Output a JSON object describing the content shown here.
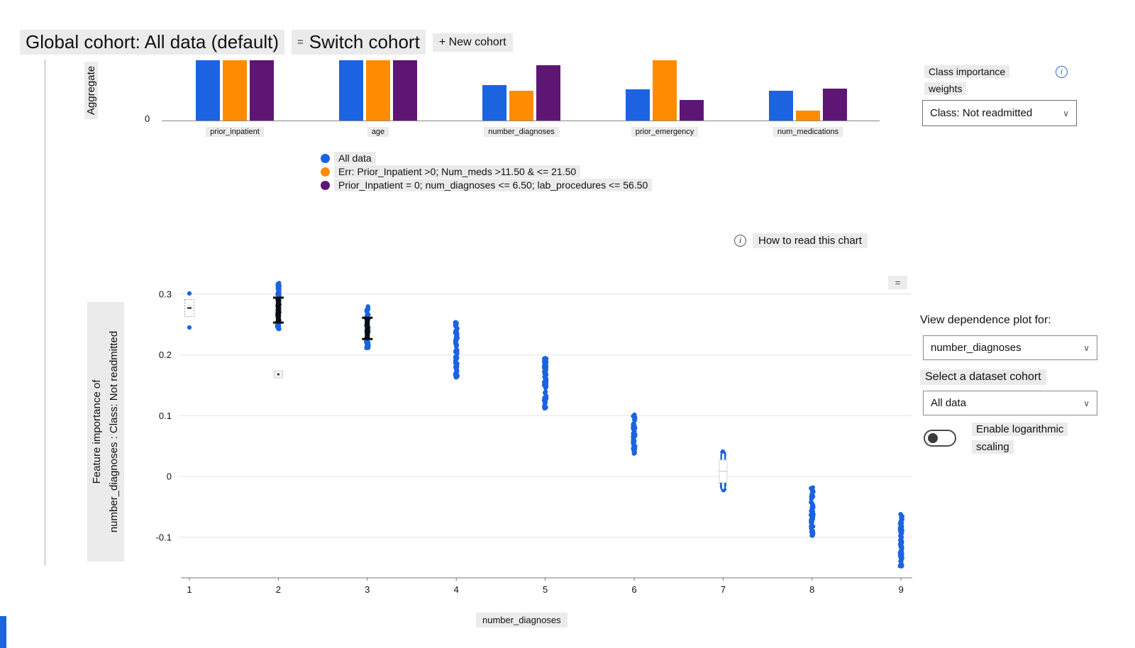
{
  "colors": {
    "blue": "#1b63e0",
    "orange": "#ff8c00",
    "purple": "#5e1675",
    "pill_bg": "#ebebeb"
  },
  "icons": {
    "chevron": "∨",
    "info": "i",
    "switch": "=",
    "modebar": "="
  },
  "header": {
    "title": "Global cohort: All data (default)",
    "switch_cohort": "Switch cohort",
    "new_cohort": "+ New cohort"
  },
  "class_importance": {
    "label_line1": "Class importance",
    "label_line2": "weights",
    "selected": "Class: Not readmitted"
  },
  "legend": [
    {
      "label": "All data",
      "color_key": "blue"
    },
    {
      "label": "Err: Prior_Inpatient >0; Num_meds >11.50 & <= 21.50",
      "color_key": "orange"
    },
    {
      "label": "Prior_Inpatient = 0; num_diagnoses <= 6.50; lab_procedures <= 56.50",
      "color_key": "purple"
    }
  ],
  "how_to_read": "How to read this chart",
  "right_panel": {
    "view_dependence_label": "View dependence plot for:",
    "feature_selected": "number_diagnoses",
    "cohort_label": "Select a dataset cohort",
    "cohort_selected": "All data",
    "log_toggle_line1": "Enable logarithmic",
    "log_toggle_line2": "scaling",
    "toggle_state": "off"
  },
  "chart_data": [
    {
      "type": "bar",
      "ylabel": "Aggregate",
      "y_zero_label": "0",
      "categories": [
        "prior_inpatient",
        "age",
        "number_diagnoses",
        "prior_emergency",
        "num_medications"
      ],
      "series": [
        {
          "name": "All data",
          "color_key": "blue",
          "values": [
            1,
            1,
            0.59,
            0.52,
            0.49
          ]
        },
        {
          "name": "Err: Prior_Inpatient >0; Num_meds >11.50 & <= 21.50",
          "color_key": "orange",
          "values": [
            1,
            1,
            0.49,
            1,
            0.16
          ]
        },
        {
          "name": "Prior_Inpatient = 0; num_diagnoses <= 6.50; lab_procedures <= 56.50",
          "color_key": "purple",
          "values": [
            1,
            1,
            0.92,
            0.34,
            0.53
          ]
        }
      ]
    },
    {
      "type": "scatter",
      "xlabel": "number_diagnoses",
      "ylabel": "Feature importance of number_diagnoses : Class: Not readmitted",
      "ylabel_lines": [
        "Feature importance of",
        "number_diagnoses : Class: Not readmitted"
      ],
      "series_name": "All data",
      "x_ticks": [
        1,
        2,
        3,
        4,
        5,
        6,
        7,
        8,
        9
      ],
      "y_ticks": [
        0.3,
        0.2,
        0.1,
        0,
        -0.1
      ],
      "ylim": [
        -0.17,
        0.34
      ],
      "clusters": [
        {
          "x": 1,
          "points": [
            0.301,
            0.28,
            0.245
          ],
          "box": {
            "low": 0.263,
            "high": 0.291,
            "style": "white-dashed"
          }
        },
        {
          "x": 2,
          "range": [
            0.242,
            0.319
          ],
          "box": {
            "low": 0.253,
            "high": 0.294,
            "style": "black"
          },
          "mini_box": 0.168
        },
        {
          "x": 3,
          "range": [
            0.211,
            0.281
          ],
          "box": {
            "low": 0.226,
            "high": 0.261,
            "style": "black"
          }
        },
        {
          "x": 4,
          "range": [
            0.162,
            0.254
          ]
        },
        {
          "x": 5,
          "range": [
            0.11,
            0.196
          ]
        },
        {
          "x": 6,
          "range": [
            0.037,
            0.102
          ]
        },
        {
          "x": 7,
          "range": [
            -0.024,
            0.041
          ],
          "box": {
            "low": -0.01,
            "high": 0.027,
            "style": "white"
          }
        },
        {
          "x": 8,
          "range": [
            -0.098,
            -0.016
          ]
        },
        {
          "x": 9,
          "range": [
            -0.148,
            -0.062
          ]
        }
      ]
    }
  ]
}
